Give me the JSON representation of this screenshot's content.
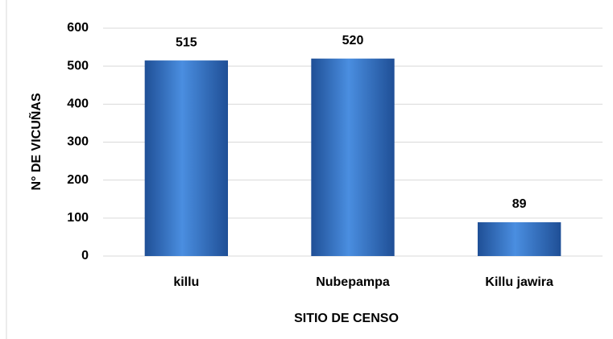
{
  "chart_data": {
    "type": "bar",
    "categories": [
      "killu",
      "Nubepampa",
      "Killu jawira"
    ],
    "values": [
      515,
      520,
      89
    ],
    "color": "#2e6fc4",
    "xlabel": "SITIO DE CENSO",
    "ylabel": "N° DE VICUÑAS",
    "ylim": [
      0,
      600
    ],
    "yticks": [
      0,
      100,
      200,
      300,
      400,
      500,
      600
    ],
    "grid": true
  }
}
